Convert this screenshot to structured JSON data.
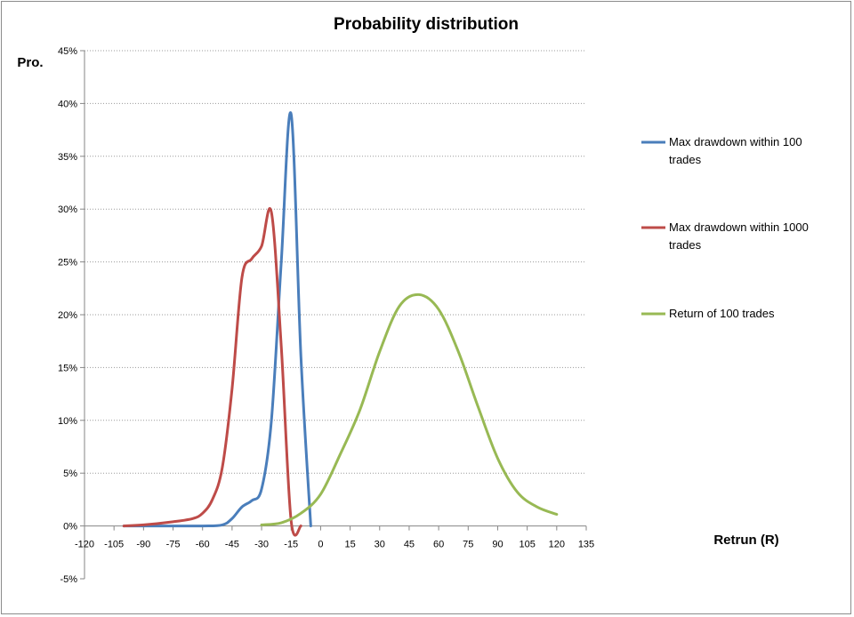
{
  "chart_data": {
    "type": "line",
    "title": "Probability distribution",
    "ylabel": "Pro.",
    "xlabel": "Retrun (R)",
    "xlim": [
      -120,
      135
    ],
    "ylim": [
      -0.05,
      0.45
    ],
    "x_ticks": [
      -120,
      -105,
      -90,
      -75,
      -60,
      -45,
      -30,
      -15,
      0,
      15,
      30,
      45,
      60,
      75,
      90,
      105,
      120,
      135
    ],
    "y_ticks": [
      {
        "value": 0.45,
        "label": "45%"
      },
      {
        "value": 0.4,
        "label": "40%"
      },
      {
        "value": 0.35,
        "label": "35%"
      },
      {
        "value": 0.3,
        "label": "30%"
      },
      {
        "value": 0.25,
        "label": "25%"
      },
      {
        "value": 0.2,
        "label": "20%"
      },
      {
        "value": 0.15,
        "label": "15%"
      },
      {
        "value": 0.1,
        "label": "10%"
      },
      {
        "value": 0.05,
        "label": "5%"
      },
      {
        "value": 0.0,
        "label": "0%"
      },
      {
        "value": -0.05,
        "label": "-5%"
      }
    ],
    "grid": "horizontal dotted",
    "legend_position": "right",
    "series": [
      {
        "name": "Max drawdown within 100 trades",
        "color": "#4a7ebb",
        "points": [
          [
            -100,
            0
          ],
          [
            -80,
            0
          ],
          [
            -60,
            0
          ],
          [
            -50,
            0.001
          ],
          [
            -45,
            0.007
          ],
          [
            -40,
            0.018
          ],
          [
            -35,
            0.024
          ],
          [
            -30,
            0.035
          ],
          [
            -25,
            0.1
          ],
          [
            -20,
            0.25
          ],
          [
            -15,
            0.39
          ],
          [
            -10,
            0.16
          ],
          [
            -5,
            0.0
          ]
        ]
      },
      {
        "name": "Max drawdown within 1000 trades",
        "color": "#be4b48",
        "points": [
          [
            -100,
            0
          ],
          [
            -90,
            0.001
          ],
          [
            -75,
            0.004
          ],
          [
            -65,
            0.007
          ],
          [
            -60,
            0.012
          ],
          [
            -55,
            0.025
          ],
          [
            -50,
            0.055
          ],
          [
            -45,
            0.13
          ],
          [
            -40,
            0.235
          ],
          [
            -35,
            0.253
          ],
          [
            -30,
            0.265
          ],
          [
            -25,
            0.297
          ],
          [
            -20,
            0.17
          ],
          [
            -15,
            0.005
          ],
          [
            -10,
            0.0
          ]
        ]
      },
      {
        "name": "Return of 100 trades",
        "color": "#98b954",
        "points": [
          [
            -30,
            0.001
          ],
          [
            -20,
            0.003
          ],
          [
            -10,
            0.012
          ],
          [
            0,
            0.03
          ],
          [
            10,
            0.068
          ],
          [
            20,
            0.11
          ],
          [
            30,
            0.165
          ],
          [
            40,
            0.208
          ],
          [
            50,
            0.219
          ],
          [
            60,
            0.205
          ],
          [
            70,
            0.165
          ],
          [
            80,
            0.113
          ],
          [
            90,
            0.064
          ],
          [
            100,
            0.032
          ],
          [
            110,
            0.018
          ],
          [
            120,
            0.011
          ]
        ]
      }
    ]
  }
}
